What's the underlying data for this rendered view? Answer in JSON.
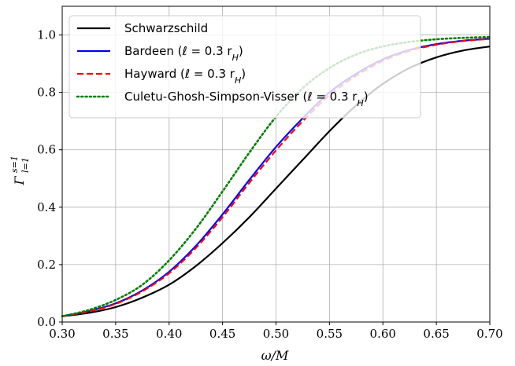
{
  "chart_data": {
    "type": "line",
    "title": "",
    "xlabel": "ω/M",
    "ylabel": "Γ",
    "ylabel_sup": "s=1",
    "ylabel_sub": "l=1",
    "xlim": [
      0.3,
      0.7
    ],
    "ylim": [
      0.0,
      1.1
    ],
    "xticks": [
      "0.30",
      "0.35",
      "0.40",
      "0.45",
      "0.50",
      "0.55",
      "0.60",
      "0.65",
      "0.70"
    ],
    "yticks": [
      "0.0",
      "0.2",
      "0.4",
      "0.6",
      "0.8",
      "1.0"
    ],
    "grid": true,
    "legend_position": "top-left",
    "x": [
      0.3,
      0.325,
      0.35,
      0.375,
      0.4,
      0.425,
      0.45,
      0.475,
      0.5,
      0.525,
      0.55,
      0.575,
      0.6,
      0.625,
      0.65,
      0.675,
      0.7
    ],
    "series": [
      {
        "name": "Schwarzschild",
        "color": "#000000",
        "dash": "solid",
        "values": [
          0.02,
          0.032,
          0.052,
          0.085,
          0.13,
          0.195,
          0.275,
          0.365,
          0.465,
          0.565,
          0.665,
          0.755,
          0.83,
          0.885,
          0.922,
          0.946,
          0.96
        ]
      },
      {
        "name": "Bardeen (ℓ = 0.3 r",
        "name_sub": "H",
        "name_end": ")",
        "color": "#0000ff",
        "dash": "solid",
        "values": [
          0.02,
          0.038,
          0.065,
          0.11,
          0.175,
          0.265,
          0.375,
          0.495,
          0.61,
          0.71,
          0.8,
          0.865,
          0.915,
          0.948,
          0.968,
          0.98,
          0.987
        ]
      },
      {
        "name": "Hayward (ℓ = 0.3 r",
        "name_sub": "H",
        "name_end": ")",
        "color": "#ff0000",
        "dash": "dashed",
        "values": [
          0.02,
          0.037,
          0.063,
          0.107,
          0.17,
          0.258,
          0.365,
          0.485,
          0.598,
          0.7,
          0.79,
          0.858,
          0.91,
          0.945,
          0.966,
          0.979,
          0.986
        ]
      },
      {
        "name": "Culetu-Ghosh-Simpson-Visser (ℓ = 0.3 r",
        "name_sub": "H",
        "name_end": ")",
        "color": "#008000",
        "dash": "dotted",
        "values": [
          0.02,
          0.042,
          0.077,
          0.13,
          0.215,
          0.325,
          0.455,
          0.59,
          0.715,
          0.815,
          0.885,
          0.932,
          0.96,
          0.976,
          0.985,
          0.99,
          0.993
        ]
      }
    ]
  }
}
